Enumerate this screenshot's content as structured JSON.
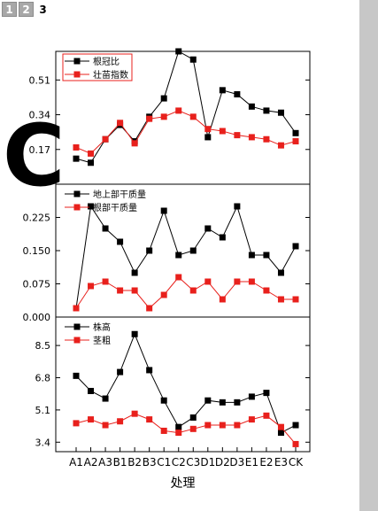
{
  "page_tabs": [
    {
      "label": "1",
      "active": false
    },
    {
      "label": "2",
      "active": false
    },
    {
      "label": "3",
      "active": true
    }
  ],
  "overlay_letter": "C",
  "colors": {
    "black": "#000000",
    "red": "#e8201c"
  },
  "chart_data": [
    {
      "type": "line",
      "panel": "top",
      "ylim": [
        0.0,
        0.65
      ],
      "yticks": [
        0.17,
        0.34,
        0.51
      ],
      "y_tick_labels": [
        "0.17",
        "0.34",
        "0.51"
      ],
      "series": [
        {
          "name": "根冠比",
          "color": "#000000",
          "values": [
            0.125,
            0.105,
            0.22,
            0.29,
            0.21,
            0.33,
            0.42,
            0.65,
            0.61,
            0.23,
            0.46,
            0.44,
            0.38,
            0.36,
            0.35,
            0.25
          ]
        },
        {
          "name": "壮苗指数",
          "color": "#e8201c",
          "values": [
            0.18,
            0.15,
            0.22,
            0.3,
            0.2,
            0.32,
            0.33,
            0.36,
            0.33,
            0.27,
            0.26,
            0.24,
            0.23,
            0.22,
            0.19,
            0.21
          ]
        }
      ],
      "legend": "top-left"
    },
    {
      "type": "line",
      "panel": "middle",
      "ylim": [
        0.0,
        0.3
      ],
      "yticks": [
        0.0,
        0.075,
        0.15,
        0.225
      ],
      "y_tick_labels": [
        "0.000",
        "0.075",
        "0.150",
        "0.225"
      ],
      "series": [
        {
          "name": "地上部干质量",
          "color": "#000000",
          "values": [
            0.02,
            0.25,
            0.2,
            0.17,
            0.1,
            0.15,
            0.24,
            0.14,
            0.15,
            0.2,
            0.18,
            0.25,
            0.14,
            0.14,
            0.1,
            0.16
          ]
        },
        {
          "name": "根部干质量",
          "color": "#e8201c",
          "values": [
            0.02,
            0.07,
            0.08,
            0.06,
            0.06,
            0.02,
            0.05,
            0.09,
            0.06,
            0.08,
            0.04,
            0.08,
            0.08,
            0.06,
            0.04,
            0.04
          ]
        }
      ],
      "legend": "top-left"
    },
    {
      "type": "line",
      "panel": "bottom",
      "ylim": [
        2.9,
        10.0
      ],
      "yticks": [
        3.4,
        5.1,
        6.8,
        8.5
      ],
      "y_tick_labels": [
        "3.4",
        "5.1",
        "6.8",
        "8.5"
      ],
      "categories": [
        "A1",
        "A2",
        "A3",
        "B1",
        "B2",
        "B3",
        "C1",
        "C2",
        "C3",
        "D1",
        "D2",
        "D3",
        "E1",
        "E2",
        "E3",
        "CK"
      ],
      "xlabel": "处理",
      "series": [
        {
          "name": "株高",
          "color": "#000000",
          "values": [
            6.9,
            6.1,
            5.7,
            7.1,
            9.1,
            7.2,
            5.6,
            4.2,
            4.7,
            5.6,
            5.5,
            5.5,
            5.8,
            6.0,
            3.9,
            4.3
          ]
        },
        {
          "name": "茎粗",
          "color": "#e8201c",
          "values": [
            4.4,
            4.6,
            4.3,
            4.5,
            4.9,
            4.6,
            4.0,
            3.9,
            4.1,
            4.3,
            4.3,
            4.3,
            4.6,
            4.8,
            4.2,
            3.3
          ]
        }
      ],
      "legend": "top-left"
    }
  ]
}
